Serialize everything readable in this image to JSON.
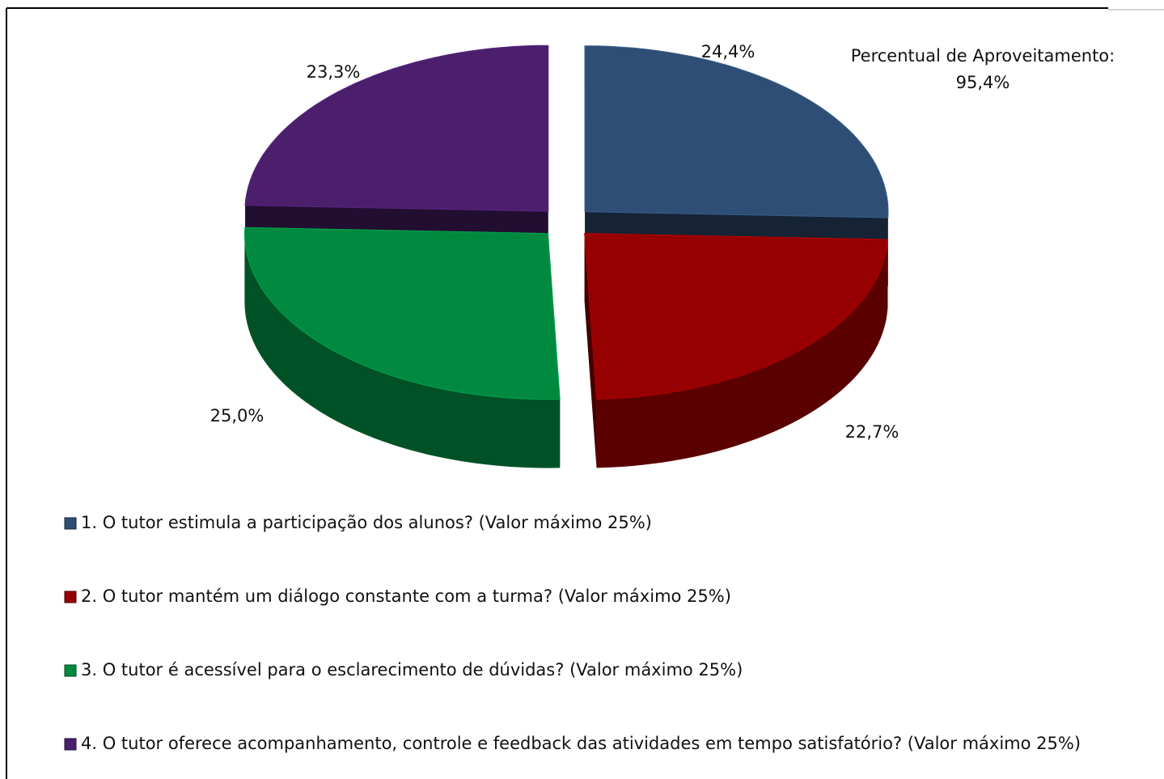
{
  "chart_data": {
    "type": "pie3d",
    "annotation": [
      "Percentual de Aproveitamento:",
      "95,4%"
    ],
    "categories": [
      "1. O tutor estimula a participação dos alunos? (Valor máximo 25%)",
      "2. O tutor mantém um diálogo constante com a turma? (Valor máximo 25%)",
      "3. O tutor é acessível para o esclarecimento de dúvidas? (Valor máximo 25%)",
      "4. O tutor oferece acompanhamento, controle e feedback das atividades em tempo satisfatório? (Valor máximo 25%)"
    ],
    "values": [
      24.4,
      22.7,
      25.0,
      23.3
    ],
    "value_labels": [
      "24,4%",
      "22,7%",
      "25,0%",
      "23,3%"
    ],
    "colors": [
      "#2f4e75",
      "#960000",
      "#00893f",
      "#4b1f6c"
    ],
    "legend": "bottom"
  }
}
